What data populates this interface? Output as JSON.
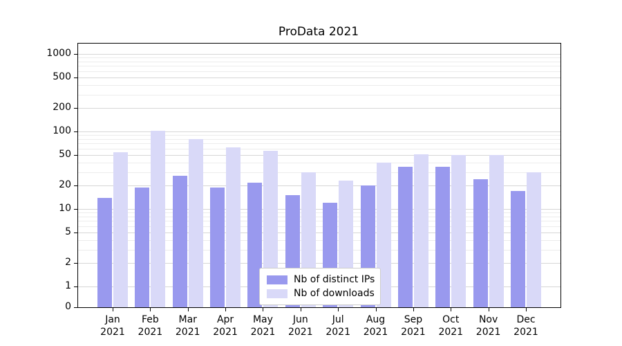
{
  "chart_data": {
    "type": "bar",
    "title": "ProData 2021",
    "yscale": "symlog",
    "grid": true,
    "legend_position": "lower center",
    "categories": [
      "Jan 2021",
      "Feb 2021",
      "Mar 2021",
      "Apr 2021",
      "May 2021",
      "Jun 2021",
      "Jul 2021",
      "Aug 2021",
      "Sep 2021",
      "Oct 2021",
      "Nov 2021",
      "Dec 2021"
    ],
    "series": [
      {
        "name": "Nb of distinct IPs",
        "color": "#9999ee",
        "values": [
          14,
          19,
          27,
          19,
          22,
          15,
          12,
          20,
          35,
          35,
          24,
          17
        ]
      },
      {
        "name": "Nb of downloads",
        "color": "#d9d9f8",
        "values": [
          54,
          102,
          80,
          62,
          56,
          30,
          23,
          40,
          51,
          50,
          50,
          30
        ]
      }
    ],
    "yticks": [
      0,
      1,
      2,
      5,
      10,
      20,
      50,
      100,
      200,
      500,
      1000
    ],
    "ylim": [
      0,
      1360
    ],
    "xlabel": "",
    "ylabel": ""
  },
  "colors": {
    "grid_major": "#d6d6d6",
    "grid_minor": "#ececec",
    "axis": "#000000",
    "legend_border": "#cccccc"
  }
}
